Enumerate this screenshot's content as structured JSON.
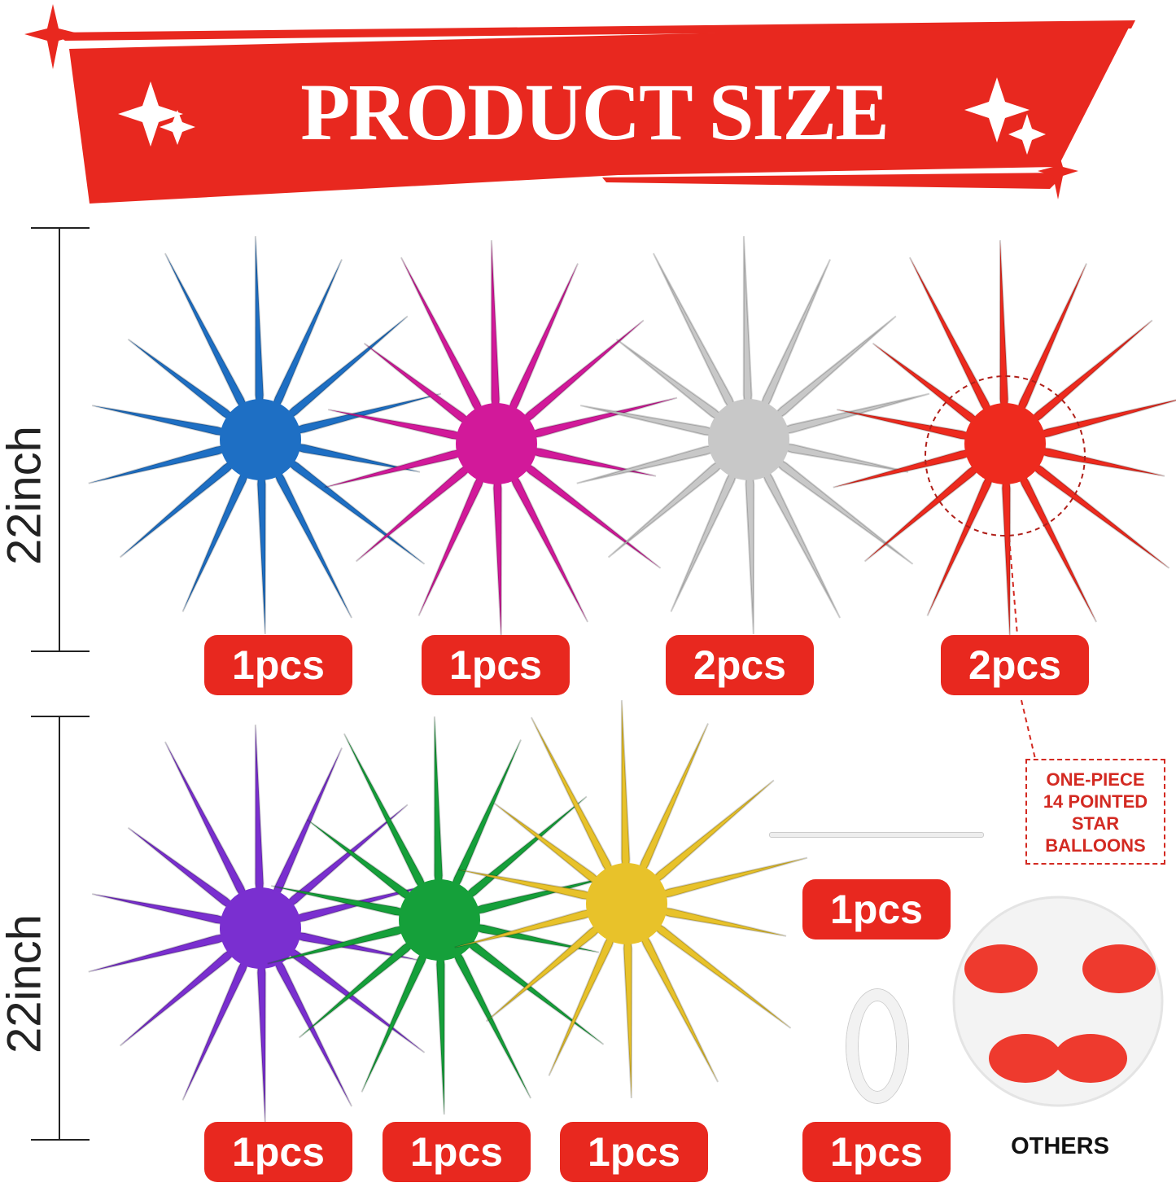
{
  "banner": {
    "title": "PRODUCT SIZE",
    "color": "#e8281f"
  },
  "dimensions": [
    {
      "label": "22inch"
    },
    {
      "label": "22inch"
    }
  ],
  "balloons": [
    {
      "color": "#1e6fc4",
      "quantity": "1pcs"
    },
    {
      "color": "#d2199a",
      "quantity": "1pcs"
    },
    {
      "color": "#c8c8c8",
      "quantity": "2pcs"
    },
    {
      "color": "#ee2a1e",
      "quantity": "2pcs"
    },
    {
      "color": "#7a2fd0",
      "quantity": "1pcs"
    },
    {
      "color": "#15a03a",
      "quantity": "1pcs"
    },
    {
      "color": "#e8c22a",
      "quantity": "1pcs"
    }
  ],
  "accessories": [
    {
      "item": "stick",
      "quantity": "1pcs"
    },
    {
      "item": "ribbon-tape",
      "quantity": "1pcs"
    }
  ],
  "note": {
    "lines": [
      "ONE-PIECE",
      "14 POINTED",
      "STAR",
      "BALLOONS"
    ]
  },
  "others_label": "OTHERS"
}
